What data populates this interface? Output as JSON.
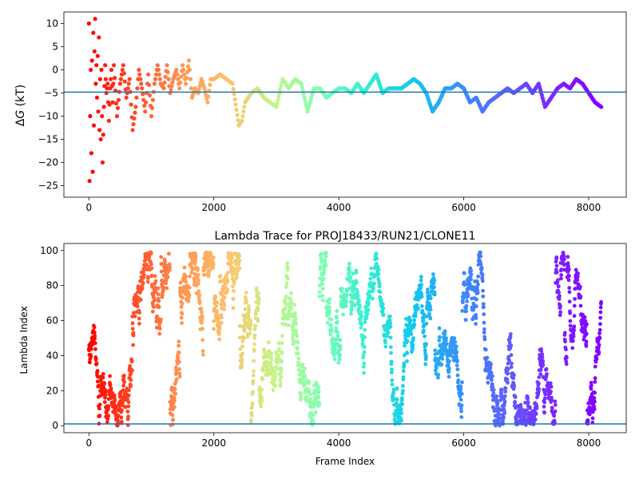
{
  "chart_data": [
    {
      "type": "scatter",
      "title": "",
      "xlabel": "",
      "ylabel_symbol": "Δ",
      "ylabel_var": "G",
      "ylabel_unit": " (kT)",
      "xlim": [
        -400,
        8600
      ],
      "ylim": [
        -27.5,
        12.5
      ],
      "xticks": [
        0,
        2000,
        4000,
        6000,
        8000
      ],
      "xtick_labels": [
        "0",
        "2000",
        "4000",
        "6000",
        "8000"
      ],
      "yticks": [
        -25,
        -20,
        -15,
        -10,
        -5,
        0,
        5,
        10
      ],
      "ytick_labels": [
        "−25",
        "−20",
        "−15",
        "−10",
        "−5",
        "0",
        "5",
        "10"
      ],
      "hline": -4.8,
      "colormap": "rainbow (reversed: red at start, violet at end)",
      "series": [
        {
          "x": [
            0,
            10,
            20,
            30,
            40,
            50,
            60,
            70,
            80,
            90,
            100,
            110,
            120,
            130,
            140,
            150,
            160,
            170,
            180,
            190,
            200,
            220,
            240,
            260,
            280,
            300,
            320,
            340,
            360,
            380,
            400,
            450,
            500,
            550,
            600,
            650,
            700,
            750,
            800,
            850,
            900,
            950,
            1000,
            1050,
            1100,
            1150,
            1200,
            1250,
            1300,
            1350,
            1400,
            1450,
            1500,
            1550,
            1600,
            1650,
            1700,
            1750,
            1800,
            1850,
            1900,
            1950,
            2000,
            2100,
            2200,
            2300,
            2400,
            2450,
            2500,
            2550,
            2600,
            2700,
            2800,
            2900,
            3000,
            3100,
            3200,
            3300,
            3400,
            3500,
            3600,
            3700,
            3800,
            3900,
            4000,
            4100,
            4200,
            4300,
            4400,
            4500,
            4600,
            4700,
            4800,
            4900,
            5000,
            5100,
            5200,
            5300,
            5400,
            5500,
            5600,
            5700,
            5800,
            5900,
            6000,
            6100,
            6200,
            6300,
            6400,
            6500,
            6600,
            6700,
            6800,
            6900,
            7000,
            7100,
            7200,
            7300,
            7400,
            7500,
            7600,
            7700,
            7800,
            7900,
            8000,
            8100,
            8200
          ],
          "y": [
            10,
            -24,
            -10,
            0,
            -18,
            2,
            -22,
            8,
            -12,
            4,
            11,
            -3,
            1,
            -6,
            3,
            -9,
            7,
            -13,
            -2,
            -15,
            0,
            -20,
            -8,
            1,
            -5,
            -3,
            -11,
            -4,
            0,
            -7,
            1,
            -10,
            -3,
            1,
            -6,
            -2,
            -13,
            -8,
            0,
            -4,
            -9,
            -1,
            -10,
            -3,
            1,
            -3,
            -4,
            1,
            -5,
            -2,
            0,
            -4,
            1,
            -3,
            2,
            -6,
            -4,
            -5,
            -2,
            -4,
            -7,
            -2,
            -2,
            -1,
            -2,
            -3,
            -12,
            -11,
            -7,
            -6,
            -5,
            -4,
            -6,
            -7,
            -8,
            -2,
            -4,
            -2,
            -3,
            -9,
            -4,
            -4,
            -6,
            -5,
            -4,
            -4,
            -5,
            -3,
            -5,
            -3,
            -1,
            -5,
            -4,
            -4,
            -4,
            -3,
            -2,
            -3,
            -5,
            -9,
            -7,
            -4,
            -4,
            -3,
            -4,
            -7,
            -6,
            -9,
            -7,
            -6,
            -5,
            -4,
            -5,
            -4,
            -3,
            -5,
            -3,
            -8,
            -6,
            -4,
            -3,
            -4,
            -2,
            -3,
            -5,
            -7,
            -8
          ]
        }
      ]
    },
    {
      "type": "scatter",
      "title": "Lambda Trace for PROJ18433/RUN21/CLONE11",
      "xlabel": "Frame Index",
      "ylabel": "Lambda Index",
      "xlim": [
        -400,
        8600
      ],
      "ylim": [
        -4,
        104
      ],
      "xticks": [
        0,
        2000,
        4000,
        6000,
        8000
      ],
      "xtick_labels": [
        "0",
        "2000",
        "4000",
        "6000",
        "8000"
      ],
      "yticks": [
        0,
        20,
        40,
        60,
        80,
        100
      ],
      "ytick_labels": [
        "0",
        "20",
        "40",
        "60",
        "80",
        "100"
      ],
      "hline": 1,
      "colormap": "rainbow (reversed: red at start, violet at end)",
      "series": [
        {
          "x_range": [
            0,
            8200
          ],
          "y_range": [
            0,
            99
          ],
          "n_points": 8200,
          "description": "Lambda index sampled across frames, spread roughly uniformly between 0 and 99"
        }
      ]
    }
  ]
}
